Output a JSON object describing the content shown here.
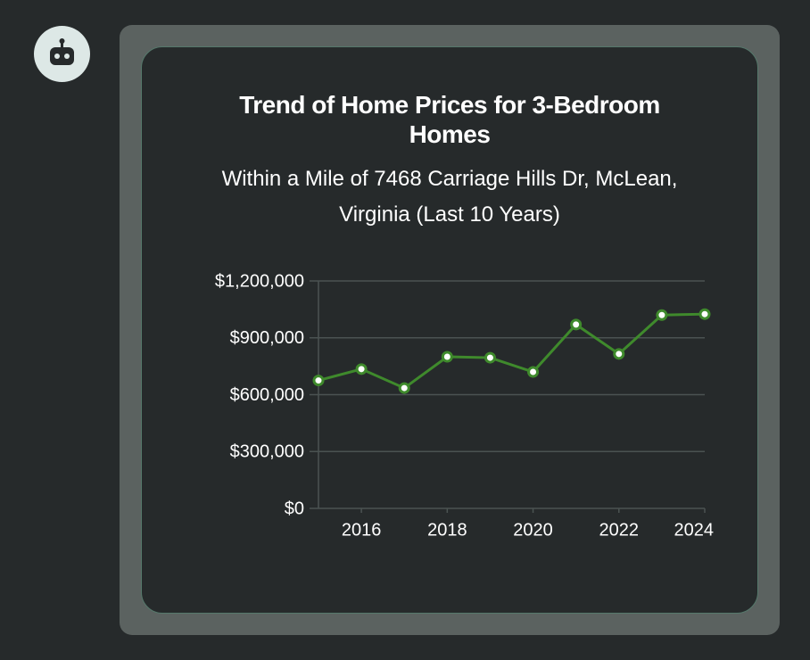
{
  "chart_data": {
    "type": "line",
    "title": "Trend of Home Prices for 3-Bedroom Homes",
    "subtitle": "Within a Mile of 7468 Carriage Hills Dr, McLean, Virginia (Last 10 Years)",
    "x": [
      2015,
      2016,
      2017,
      2018,
      2019,
      2020,
      2021,
      2022,
      2023,
      2024
    ],
    "series": [
      {
        "color": "#3f8a2c",
        "values": [
          675000,
          735000,
          635000,
          800000,
          795000,
          720000,
          970000,
          815000,
          1020000,
          1025000
        ]
      }
    ],
    "xlim": [
      2015,
      2024
    ],
    "xticks": [
      2016,
      2018,
      2020,
      2022,
      2024
    ],
    "ylim": [
      0,
      1200000
    ],
    "yticks": [
      {
        "value": 0,
        "label": "$0"
      },
      {
        "value": 300000,
        "label": "$300,000"
      },
      {
        "value": 600000,
        "label": "$600,000"
      },
      {
        "value": 900000,
        "label": "$900,000"
      },
      {
        "value": 1200000,
        "label": "$1,200,000"
      }
    ],
    "grid": true
  }
}
